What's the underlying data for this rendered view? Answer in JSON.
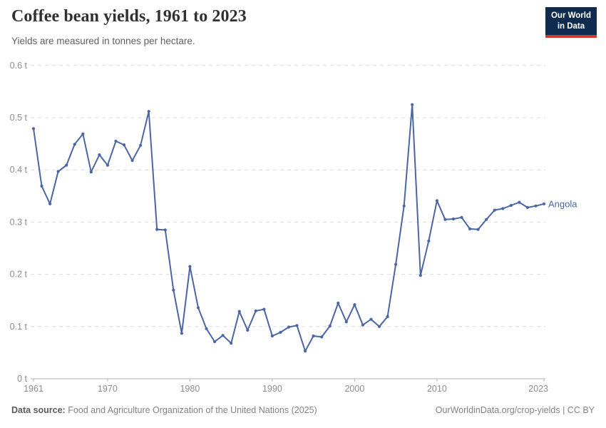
{
  "header": {
    "title": "Coffee bean yields, 1961 to 2023",
    "subtitle": "Yields are measured in tonnes per hectare."
  },
  "logo": {
    "line1": "Our World",
    "line2": "in Data",
    "bg_color": "#0F2B4E",
    "accent_color": "#CB3B2E"
  },
  "chart_data": {
    "type": "line",
    "title": "Coffee bean yields, 1961 to 2023",
    "xlabel": "",
    "ylabel": "tonnes per hectare",
    "x_range": [
      1961,
      2023
    ],
    "ylim": [
      0,
      0.6
    ],
    "grid": "horizontal-dashed",
    "legend_position": "end-of-line",
    "y_ticks": [
      0,
      0.1,
      0.2,
      0.3,
      0.4,
      0.5,
      0.6
    ],
    "y_tick_labels": [
      "0 t",
      "0.1 t",
      "0.2 t",
      "0.3 t",
      "0.4 t",
      "0.5 t",
      "0.6 t"
    ],
    "x_ticks": [
      1961,
      1970,
      1980,
      1990,
      2000,
      2010,
      2023
    ],
    "series": [
      {
        "name": "Angola",
        "color": "#4A66A4",
        "x": [
          1961,
          1962,
          1963,
          1964,
          1965,
          1966,
          1967,
          1968,
          1969,
          1970,
          1971,
          1972,
          1973,
          1974,
          1975,
          1976,
          1977,
          1978,
          1979,
          1980,
          1981,
          1982,
          1983,
          1984,
          1985,
          1986,
          1987,
          1988,
          1989,
          1990,
          1991,
          1992,
          1993,
          1994,
          1995,
          1996,
          1997,
          1998,
          1999,
          2000,
          2001,
          2002,
          2003,
          2004,
          2005,
          2006,
          2007,
          2008,
          2009,
          2010,
          2011,
          2012,
          2013,
          2014,
          2015,
          2016,
          2017,
          2018,
          2019,
          2020,
          2021,
          2022,
          2023
        ],
        "values": [
          0.479,
          0.369,
          0.335,
          0.397,
          0.409,
          0.449,
          0.469,
          0.396,
          0.429,
          0.409,
          0.455,
          0.448,
          0.418,
          0.447,
          0.512,
          0.286,
          0.285,
          0.17,
          0.087,
          0.215,
          0.136,
          0.096,
          0.071,
          0.083,
          0.068,
          0.129,
          0.093,
          0.13,
          0.133,
          0.082,
          0.089,
          0.099,
          0.102,
          0.053,
          0.082,
          0.08,
          0.101,
          0.145,
          0.109,
          0.142,
          0.103,
          0.114,
          0.1,
          0.119,
          0.219,
          0.331,
          0.525,
          0.198,
          0.264,
          0.341,
          0.305,
          0.306,
          0.309,
          0.287,
          0.286,
          0.305,
          0.323,
          0.326,
          0.332,
          0.338,
          0.328,
          0.331,
          0.335
        ]
      }
    ]
  },
  "footer": {
    "source_label": "Data source:",
    "source_text": " Food and Agriculture Organization of the United Nations (2025)",
    "link_text": "OurWorldinData.org/crop-yields | CC BY"
  },
  "colors": {
    "line": "#4A66A4",
    "gridline": "#dcdcdc",
    "axis": "#b3b3b3",
    "tick_text": "#8c8c8c"
  }
}
